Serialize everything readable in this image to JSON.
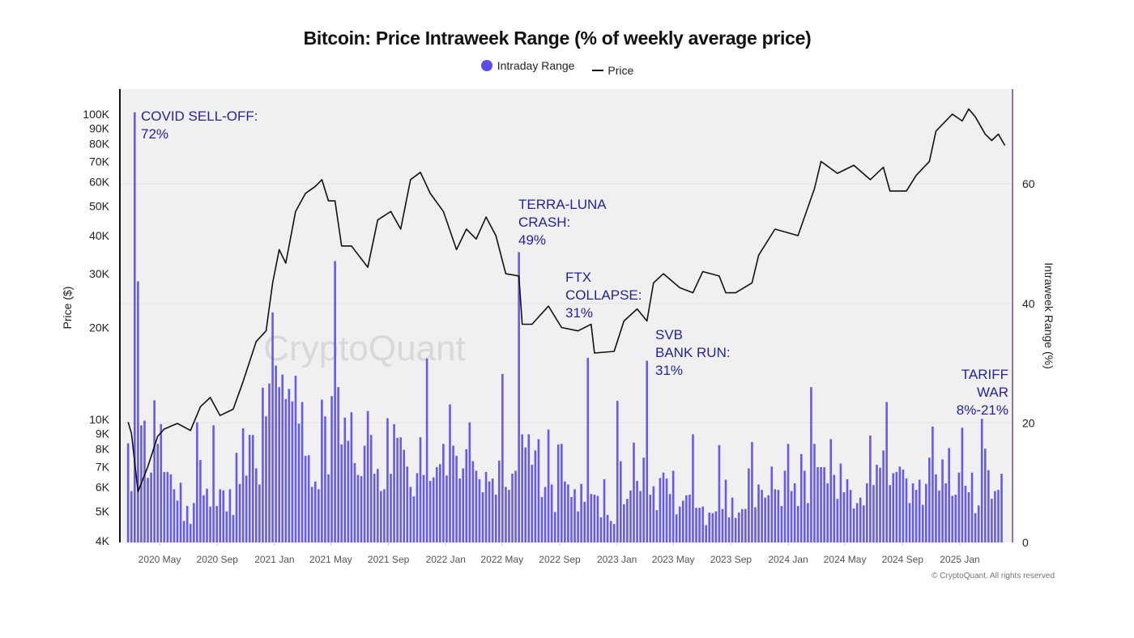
{
  "chart_data": {
    "type": "bar+line",
    "title": "Bitcoin: Price Intraweek Range (% of weekly average price)",
    "legend": {
      "placement": "top-center",
      "items": [
        {
          "label": "Intraday Range",
          "symbol": "circle",
          "color": "#5b4ee6"
        },
        {
          "label": "Price",
          "symbol": "line",
          "color": "#111111"
        }
      ]
    },
    "x_axis": {
      "type": "date",
      "ticks": [
        "2020 May",
        "2020 Sep",
        "2021 Jan",
        "2021 May",
        "2021 Sep",
        "2022 Jan",
        "2022 May",
        "2022 Sep",
        "2023 Jan",
        "2023 May",
        "2023 Sep",
        "2024 Jan",
        "2024 May",
        "2024 Sep",
        "2025 Jan"
      ],
      "tick_dates": [
        "2020-05-01",
        "2020-09-01",
        "2021-01-01",
        "2021-05-01",
        "2021-09-01",
        "2022-01-01",
        "2022-05-01",
        "2022-09-01",
        "2023-01-01",
        "2023-05-01",
        "2023-09-01",
        "2024-01-01",
        "2024-05-01",
        "2024-09-01",
        "2025-01-01"
      ]
    },
    "y_left": {
      "label": "Price ($)",
      "scale": "log",
      "range": [
        4000,
        130000
      ],
      "ticks": [
        {
          "v": 4000,
          "t": "4K"
        },
        {
          "v": 5000,
          "t": "5K"
        },
        {
          "v": 6000,
          "t": "6K"
        },
        {
          "v": 7000,
          "t": "7K"
        },
        {
          "v": 8000,
          "t": "8K"
        },
        {
          "v": 9000,
          "t": "9K"
        },
        {
          "v": 10000,
          "t": "10K"
        },
        {
          "v": 20000,
          "t": "20K"
        },
        {
          "v": 30000,
          "t": "30K"
        },
        {
          "v": 40000,
          "t": "40K"
        },
        {
          "v": 50000,
          "t": "50K"
        },
        {
          "v": 60000,
          "t": "60K"
        },
        {
          "v": 70000,
          "t": "70K"
        },
        {
          "v": 80000,
          "t": "80K"
        },
        {
          "v": 90000,
          "t": "90K"
        },
        {
          "v": 100000,
          "t": "100K"
        }
      ]
    },
    "y_right": {
      "label": "Intraweek Range (%)",
      "scale": "linear",
      "range": [
        0,
        76
      ],
      "ticks": [
        0,
        20,
        40,
        60
      ],
      "color": "#7b6ff0"
    },
    "grid": true,
    "bars": {
      "name": "Intraday Range",
      "color": "#5b4ee6",
      "first_week": "2020-02-24",
      "frequency": "weekly",
      "values": [
        16.6,
        8.6,
        72,
        43.7,
        19.6,
        20.4,
        10.8,
        11.7,
        23.8,
        16.5,
        19.8,
        11.8,
        11.8,
        11.4,
        8.9,
        7.0,
        10.0,
        3.6,
        6.1,
        3.1,
        6.6,
        20.1,
        13.8,
        7.9,
        9.0,
        6.0,
        19.6,
        6.1,
        8.9,
        8.7,
        5.2,
        8.9,
        4.6,
        15.0,
        9.8,
        19.1,
        11.2,
        18.0,
        18.0,
        12.4,
        9.7,
        25.9,
        21.1,
        26.6,
        38.5,
        29.6,
        26.0,
        28.1,
        24.0,
        25.7,
        23.6,
        27.9,
        19.9,
        23.5,
        14.5,
        14.6,
        9.3,
        10.2,
        8.9,
        23.9,
        21.1,
        11.4,
        24.5,
        47.1,
        26.0,
        16.4,
        20.9,
        17.0,
        21.8,
        13.3,
        11.3,
        11.1,
        16.2,
        22.0,
        18.0,
        11.5,
        12.3,
        8.6,
        8.9,
        20.8,
        11.5,
        19.8,
        17.5,
        17.6,
        15.5,
        12.7,
        9.3,
        7.7,
        11.6,
        17.6,
        11.3,
        30.8,
        10.3,
        10.9,
        12.6,
        13.1,
        16.5,
        11.2,
        23.1,
        16.2,
        14.5,
        10.7,
        12.4,
        15.6,
        20.1,
        13.6,
        12.0,
        10.6,
        8.4,
        11.8,
        10.2,
        10.7,
        8.0,
        13.7,
        28.2,
        9.3,
        8.8,
        11.5,
        12.0,
        48.6,
        18.1,
        15.9,
        18.1,
        13.0,
        15.4,
        17.3,
        7.6,
        9.3,
        18.9,
        9.7,
        5.1,
        16.4,
        16.5,
        10.2,
        9.7,
        7.6,
        8.9,
        5.2,
        9.8,
        6.8,
        30.9,
        8.1,
        8.0,
        7.8,
        4.2,
        10.6,
        4.6,
        3.6,
        3.1,
        23.7,
        13.6,
        6.4,
        7.3,
        8.7,
        16.7,
        10.3,
        8.6,
        14.2,
        30.4,
        8.0,
        9.4,
        5.4,
        10.8,
        11.7,
        10.7,
        8.1,
        12.0,
        4.7,
        6.0,
        7.0,
        7.9,
        8.0,
        18.1,
        5.8,
        5.8,
        6.0,
        2.9,
        5.0,
        4.9,
        5.2,
        16.3,
        5.6,
        10.5,
        4.2,
        7.5,
        4.1,
        5.0,
        5.6,
        5.6,
        12.4,
        16.8,
        5.9,
        9.7,
        8.8,
        7.5,
        7.9,
        12.7,
        8.9,
        8.8,
        6.1,
        12.0,
        16.5,
        8.6,
        9.9,
        6.1,
        14.8,
        12.0,
        6.6,
        26.0,
        16.5,
        12.6,
        12.6,
        12.6,
        9.9,
        17.3,
        11.3,
        7.3,
        13.2,
        8.4,
        10.6,
        8.8,
        5.7,
        6.6,
        7.5,
        6.2,
        9.9,
        17.9,
        9.6,
        13.0,
        12.5,
        15.4,
        23.5,
        9.6,
        11.6,
        11.8,
        12.7,
        12.2,
        10.7,
        6.6,
        9.9,
        8.8,
        10.5,
        6.3,
        9.8,
        14.2,
        19.4,
        11.4,
        8.7,
        13.9,
        9.9,
        15.8,
        7.8,
        8.0,
        11.7,
        19.2,
        9.5,
        8.4,
        11.7,
        4.9,
        6.2,
        20.7,
        15.7,
        12.1,
        7.3,
        8.6,
        8.8,
        11.5
      ]
    },
    "price": {
      "name": "Price",
      "color": "#111111",
      "points": [
        [
          "2020-02-24",
          9800
        ],
        [
          "2020-03-02",
          9000
        ],
        [
          "2020-03-16",
          5800
        ],
        [
          "2020-04-06",
          7000
        ],
        [
          "2020-04-27",
          8800
        ],
        [
          "2020-05-11",
          9300
        ],
        [
          "2020-06-08",
          9700
        ],
        [
          "2020-07-06",
          9200
        ],
        [
          "2020-07-27",
          11000
        ],
        [
          "2020-08-17",
          11800
        ],
        [
          "2020-09-07",
          10300
        ],
        [
          "2020-10-05",
          10800
        ],
        [
          "2020-10-26",
          13300
        ],
        [
          "2020-11-23",
          18000
        ],
        [
          "2020-12-14",
          19500
        ],
        [
          "2020-12-28",
          28000
        ],
        [
          "2021-01-11",
          36000
        ],
        [
          "2021-01-25",
          32500
        ],
        [
          "2021-02-15",
          48000
        ],
        [
          "2021-03-08",
          55000
        ],
        [
          "2021-03-29",
          58000
        ],
        [
          "2021-04-12",
          61000
        ],
        [
          "2021-04-26",
          52000
        ],
        [
          "2021-05-10",
          52000
        ],
        [
          "2021-05-24",
          37000
        ],
        [
          "2021-06-14",
          37000
        ],
        [
          "2021-07-19",
          31500
        ],
        [
          "2021-08-09",
          45000
        ],
        [
          "2021-09-06",
          48000
        ],
        [
          "2021-09-27",
          42000
        ],
        [
          "2021-10-18",
          61000
        ],
        [
          "2021-11-08",
          64500
        ],
        [
          "2021-11-29",
          55000
        ],
        [
          "2021-12-27",
          48000
        ],
        [
          "2022-01-24",
          36000
        ],
        [
          "2022-02-14",
          42000
        ],
        [
          "2022-03-07",
          39000
        ],
        [
          "2022-03-28",
          46000
        ],
        [
          "2022-04-18",
          40000
        ],
        [
          "2022-05-09",
          30000
        ],
        [
          "2022-06-06",
          29500
        ],
        [
          "2022-06-13",
          20500
        ],
        [
          "2022-07-04",
          20500
        ],
        [
          "2022-08-08",
          23500
        ],
        [
          "2022-09-05",
          20000
        ],
        [
          "2022-10-10",
          19500
        ],
        [
          "2022-11-07",
          20500
        ],
        [
          "2022-11-14",
          16500
        ],
        [
          "2022-12-26",
          16700
        ],
        [
          "2023-01-16",
          21000
        ],
        [
          "2023-02-13",
          23000
        ],
        [
          "2023-03-06",
          21000
        ],
        [
          "2023-03-20",
          28000
        ],
        [
          "2023-04-10",
          30000
        ],
        [
          "2023-05-15",
          27000
        ],
        [
          "2023-06-12",
          26000
        ],
        [
          "2023-07-03",
          30500
        ],
        [
          "2023-08-07",
          29500
        ],
        [
          "2023-08-21",
          26000
        ],
        [
          "2023-09-11",
          26000
        ],
        [
          "2023-10-16",
          28000
        ],
        [
          "2023-10-30",
          34500
        ],
        [
          "2023-12-04",
          42000
        ],
        [
          "2024-01-22",
          40000
        ],
        [
          "2024-02-26",
          57000
        ],
        [
          "2024-03-11",
          70000
        ],
        [
          "2024-04-15",
          64000
        ],
        [
          "2024-05-20",
          68000
        ],
        [
          "2024-06-24",
          61000
        ],
        [
          "2024-07-22",
          67000
        ],
        [
          "2024-08-05",
          56000
        ],
        [
          "2024-09-09",
          56000
        ],
        [
          "2024-09-30",
          63000
        ],
        [
          "2024-10-28",
          70000
        ],
        [
          "2024-11-11",
          88000
        ],
        [
          "2024-12-16",
          100000
        ],
        [
          "2025-01-06",
          95000
        ],
        [
          "2025-01-20",
          104000
        ],
        [
          "2025-02-03",
          98000
        ],
        [
          "2025-02-24",
          86000
        ],
        [
          "2025-03-10",
          82000
        ],
        [
          "2025-03-24",
          86000
        ],
        [
          "2025-04-07",
          79000
        ]
      ]
    },
    "annotations": [
      {
        "lines": [
          "COVID SELL-OFF:",
          "72%"
        ]
      },
      {
        "lines": [
          "TERRA-LUNA",
          "CRASH:",
          "49%"
        ]
      },
      {
        "lines": [
          "FTX",
          "COLLAPSE:",
          "31%"
        ]
      },
      {
        "lines": [
          "SVB",
          "BANK RUN:",
          "31%"
        ]
      },
      {
        "lines": [
          "TARIFF",
          "WAR",
          "8%-21%"
        ]
      }
    ],
    "annotation_color": "#23239a",
    "watermark": "CryptoQuant"
  },
  "footer": "© CryptoQuant. All rights reserved"
}
